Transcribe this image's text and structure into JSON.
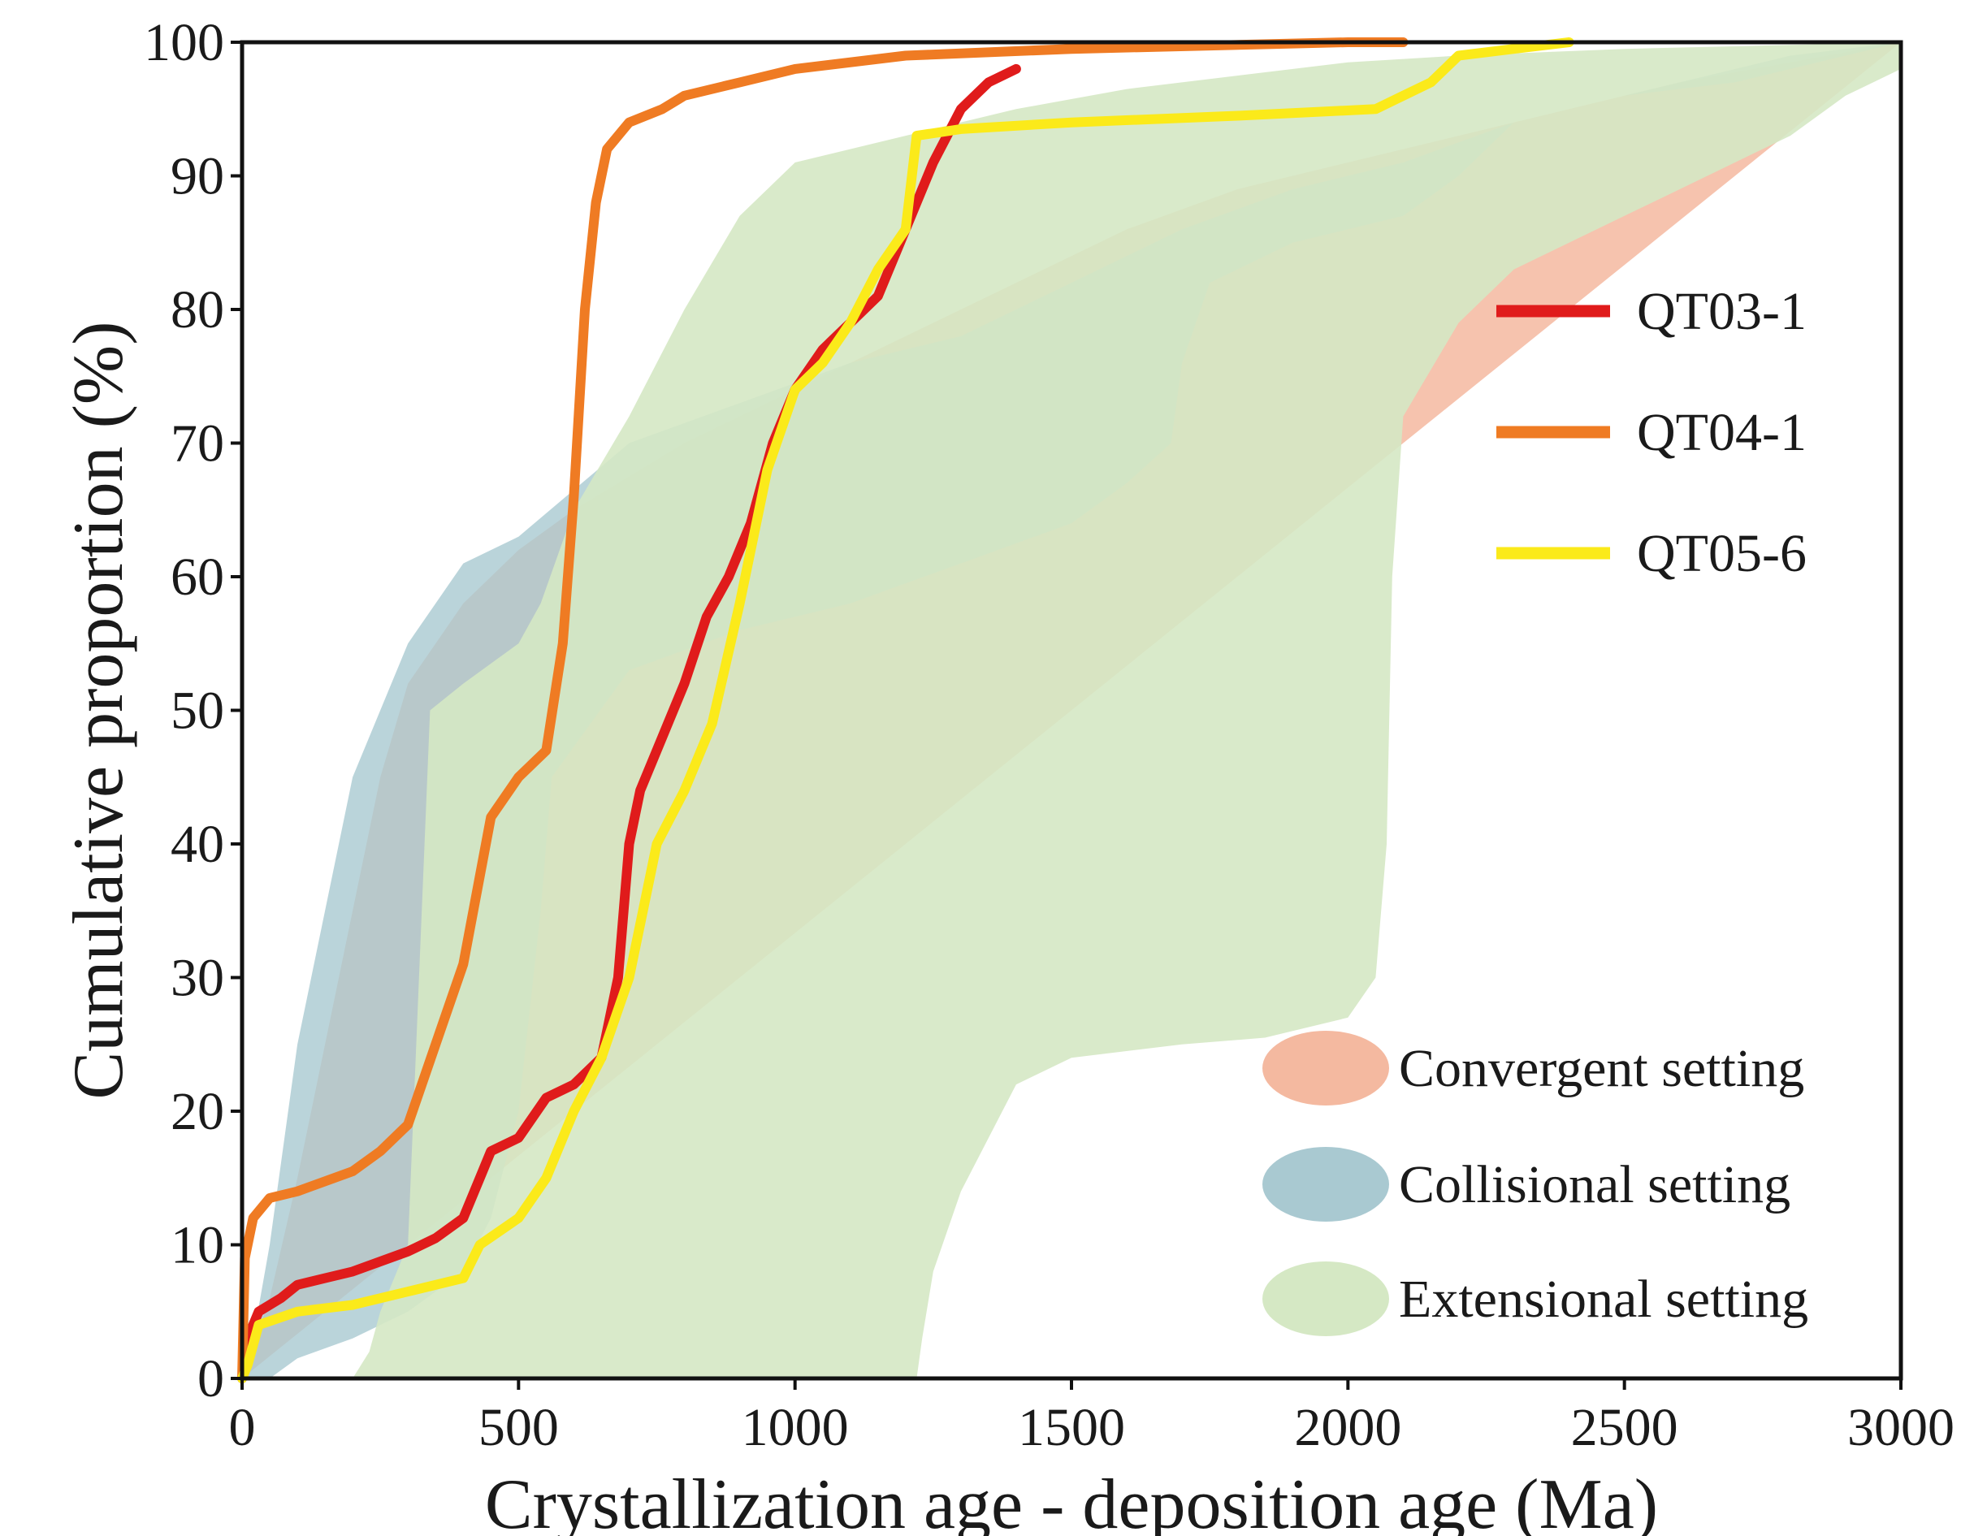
{
  "chart_data": {
    "type": "line",
    "xlabel": "Crystallization age - deposition age (Ma)",
    "ylabel": "Cumulative proportion (%)",
    "xlim": [
      0,
      3000
    ],
    "ylim": [
      0,
      100
    ],
    "x_ticks": [
      0,
      500,
      1000,
      1500,
      2000,
      2500,
      3000
    ],
    "y_ticks": [
      0,
      10,
      20,
      30,
      40,
      50,
      60,
      70,
      80,
      90,
      100
    ],
    "grid": false,
    "legend_position": "right",
    "series": [
      {
        "name": "QT03-1",
        "color": "#e01b1b",
        "points": [
          [
            0,
            0
          ],
          [
            10,
            3
          ],
          [
            30,
            5
          ],
          [
            70,
            6
          ],
          [
            100,
            7
          ],
          [
            150,
            7.5
          ],
          [
            200,
            8
          ],
          [
            300,
            9.5
          ],
          [
            350,
            10.5
          ],
          [
            400,
            12
          ],
          [
            430,
            15
          ],
          [
            450,
            17
          ],
          [
            500,
            18
          ],
          [
            550,
            21
          ],
          [
            600,
            22
          ],
          [
            650,
            24
          ],
          [
            680,
            30
          ],
          [
            700,
            40
          ],
          [
            720,
            44
          ],
          [
            760,
            48
          ],
          [
            800,
            52
          ],
          [
            840,
            57
          ],
          [
            880,
            60
          ],
          [
            920,
            64
          ],
          [
            960,
            70
          ],
          [
            1000,
            74
          ],
          [
            1050,
            77
          ],
          [
            1100,
            79
          ],
          [
            1150,
            81
          ],
          [
            1200,
            86
          ],
          [
            1250,
            91
          ],
          [
            1300,
            95
          ],
          [
            1350,
            97
          ],
          [
            1400,
            98
          ]
        ]
      },
      {
        "name": "QT04-1",
        "color": "#ef7b23",
        "points": [
          [
            0,
            0
          ],
          [
            5,
            9
          ],
          [
            20,
            12
          ],
          [
            50,
            13.5
          ],
          [
            100,
            14
          ],
          [
            200,
            15.5
          ],
          [
            250,
            17
          ],
          [
            300,
            19
          ],
          [
            350,
            25
          ],
          [
            400,
            31
          ],
          [
            450,
            42
          ],
          [
            500,
            45
          ],
          [
            550,
            47
          ],
          [
            580,
            55
          ],
          [
            600,
            66
          ],
          [
            620,
            80
          ],
          [
            640,
            88
          ],
          [
            660,
            92
          ],
          [
            700,
            94
          ],
          [
            760,
            95
          ],
          [
            800,
            96
          ],
          [
            900,
            97
          ],
          [
            1000,
            98
          ],
          [
            1200,
            99
          ],
          [
            1500,
            99.5
          ],
          [
            2000,
            100
          ],
          [
            2100,
            100
          ]
        ]
      },
      {
        "name": "QT05-6",
        "color": "#fbea1a",
        "points": [
          [
            0,
            0
          ],
          [
            10,
            1
          ],
          [
            30,
            4
          ],
          [
            100,
            5
          ],
          [
            200,
            5.5
          ],
          [
            300,
            6.5
          ],
          [
            400,
            7.5
          ],
          [
            430,
            10
          ],
          [
            500,
            12
          ],
          [
            550,
            15
          ],
          [
            600,
            20
          ],
          [
            650,
            24
          ],
          [
            700,
            30
          ],
          [
            750,
            40
          ],
          [
            800,
            44
          ],
          [
            850,
            49
          ],
          [
            900,
            58
          ],
          [
            950,
            68
          ],
          [
            1000,
            74
          ],
          [
            1050,
            76
          ],
          [
            1100,
            79
          ],
          [
            1150,
            83
          ],
          [
            1200,
            86
          ],
          [
            1220,
            93
          ],
          [
            1300,
            93.5
          ],
          [
            1500,
            94
          ],
          [
            1800,
            94.5
          ],
          [
            2050,
            95
          ],
          [
            2100,
            96
          ],
          [
            2150,
            97
          ],
          [
            2200,
            99
          ],
          [
            2300,
            99.5
          ],
          [
            2400,
            100
          ]
        ]
      }
    ],
    "envelopes": [
      {
        "name": "Convergent setting",
        "color": "#f4b9a0",
        "opacity": 0.85,
        "upper": [
          [
            0,
            100
          ],
          [
            3000,
            100
          ]
        ],
        "lower": [
          [
            0,
            0
          ],
          [
            50,
            6
          ],
          [
            100,
            15
          ],
          [
            150,
            25
          ],
          [
            200,
            35
          ],
          [
            250,
            45
          ],
          [
            300,
            52
          ],
          [
            400,
            58
          ],
          [
            500,
            62
          ],
          [
            600,
            65
          ],
          [
            800,
            70
          ],
          [
            1000,
            74
          ],
          [
            1200,
            78
          ],
          [
            1400,
            82
          ],
          [
            1600,
            86
          ],
          [
            1800,
            89
          ],
          [
            2000,
            91
          ],
          [
            2200,
            93
          ],
          [
            2400,
            95
          ],
          [
            2600,
            97
          ],
          [
            2800,
            98.5
          ],
          [
            3000,
            100
          ]
        ]
      },
      {
        "name": "Collisional setting",
        "color": "#a9c9d1",
        "opacity": 0.8,
        "upper": [
          [
            0,
            0
          ],
          [
            20,
            3
          ],
          [
            50,
            10
          ],
          [
            100,
            25
          ],
          [
            150,
            35
          ],
          [
            200,
            45
          ],
          [
            300,
            55
          ],
          [
            400,
            61
          ],
          [
            500,
            63
          ],
          [
            700,
            70
          ],
          [
            900,
            73
          ],
          [
            1100,
            76
          ],
          [
            1300,
            78
          ],
          [
            1500,
            82
          ],
          [
            1700,
            86
          ],
          [
            1900,
            89
          ],
          [
            2100,
            91
          ],
          [
            2300,
            94
          ],
          [
            2500,
            96
          ],
          [
            2800,
            99
          ],
          [
            3000,
            100
          ]
        ],
        "lower": [
          [
            3000,
            100
          ],
          [
            2900,
            99
          ],
          [
            2700,
            97
          ],
          [
            2500,
            96
          ],
          [
            2300,
            94
          ],
          [
            2200,
            90
          ],
          [
            2100,
            87
          ],
          [
            2000,
            86
          ],
          [
            1900,
            85
          ],
          [
            1750,
            82
          ],
          [
            1700,
            76
          ],
          [
            1680,
            70
          ],
          [
            1600,
            67
          ],
          [
            1500,
            64
          ],
          [
            1300,
            61
          ],
          [
            1100,
            58
          ],
          [
            900,
            56
          ],
          [
            700,
            53
          ],
          [
            560,
            45
          ],
          [
            540,
            35
          ],
          [
            500,
            20
          ],
          [
            450,
            12
          ],
          [
            400,
            8
          ],
          [
            300,
            5
          ],
          [
            200,
            3
          ],
          [
            100,
            1.5
          ],
          [
            50,
            0
          ]
        ]
      },
      {
        "name": "Extensional setting",
        "color": "#d5e8c4",
        "opacity": 0.9,
        "upper": [
          [
            200,
            0
          ],
          [
            230,
            2
          ],
          [
            250,
            5
          ],
          [
            270,
            7
          ],
          [
            300,
            10
          ],
          [
            320,
            30
          ],
          [
            340,
            50
          ],
          [
            400,
            52
          ],
          [
            500,
            55
          ],
          [
            540,
            58
          ],
          [
            600,
            65
          ],
          [
            700,
            72
          ],
          [
            800,
            80
          ],
          [
            900,
            87
          ],
          [
            1000,
            91
          ],
          [
            1200,
            93
          ],
          [
            1400,
            95
          ],
          [
            1600,
            96.5
          ],
          [
            1800,
            97.5
          ],
          [
            2000,
            98.5
          ],
          [
            2200,
            99
          ],
          [
            2500,
            99.5
          ],
          [
            3000,
            100
          ]
        ],
        "lower": [
          [
            3000,
            98
          ],
          [
            2900,
            96
          ],
          [
            2800,
            93
          ],
          [
            2700,
            91
          ],
          [
            2600,
            89
          ],
          [
            2500,
            87
          ],
          [
            2400,
            85
          ],
          [
            2300,
            83
          ],
          [
            2200,
            79
          ],
          [
            2100,
            72
          ],
          [
            2080,
            60
          ],
          [
            2070,
            40
          ],
          [
            2050,
            30
          ],
          [
            2000,
            27
          ],
          [
            1850,
            25.5
          ],
          [
            1700,
            25
          ],
          [
            1500,
            24
          ],
          [
            1400,
            22
          ],
          [
            1300,
            14
          ],
          [
            1250,
            8
          ],
          [
            1230,
            3
          ],
          [
            1220,
            0
          ]
        ]
      }
    ],
    "legend": [
      {
        "label": "QT03-1",
        "kind": "line",
        "color": "#e01b1b"
      },
      {
        "label": "QT04-1",
        "kind": "line",
        "color": "#ef7b23"
      },
      {
        "label": "QT05-6",
        "kind": "line",
        "color": "#fbea1a"
      },
      {
        "label": "Convergent setting",
        "kind": "ellipse",
        "color": "#f4b9a0"
      },
      {
        "label": "Collisional setting",
        "kind": "ellipse",
        "color": "#a9c9d1"
      },
      {
        "label": "Extensional setting",
        "kind": "ellipse",
        "color": "#d5e8c4"
      }
    ]
  }
}
